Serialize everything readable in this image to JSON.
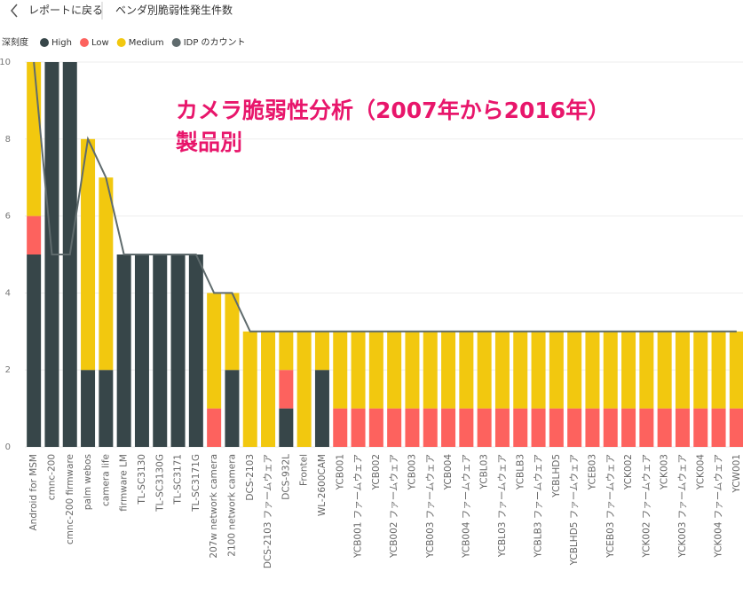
{
  "header": {
    "back": "レポートに戻る",
    "page_title": "ベンダ別脆弱性発生件数"
  },
  "chart_data": {
    "type": "stacked_bar_line",
    "legend_title": "深刻度",
    "annotation": [
      "カメラ脆弱性分析（2007年から2016年）",
      "製品別"
    ],
    "categories": [
      "Android for MSM",
      "cmnc-200",
      "cmnc-200 firmware",
      "palm webos",
      "camera life",
      "firmware LM",
      "TL-SC3130",
      "TL-SC3130G",
      "TL-SC3171",
      "TL-SC3171G",
      "207w network camera",
      "2100 network camera",
      "DCS-2103",
      "DCS-2103 ファームウェア",
      "DCS-932L",
      "Frontel",
      "WL-2600CAM",
      "YCB001",
      "YCB001 ファームウェア",
      "YCB002",
      "YCB002 ファームウェア",
      "YCB003",
      "YCB003 ファームウェア",
      "YCB004",
      "YCB004 ファームウェア",
      "YCBL03",
      "YCBL03 ファームウェア",
      "YCBLB3",
      "YCBLB3 ファームウェア",
      "YCBLHD5",
      "YCBLHD5 ファームウェア",
      "YCEB03",
      "YCEB03 ファームウェア",
      "YCK002",
      "YCK002 ファームウェア",
      "YCK003",
      "YCK003 ファームウェア",
      "YCK004",
      "YCK004 ファームウェア",
      "YCW001"
    ],
    "series": [
      {
        "name": "High",
        "color": "#374649",
        "values": [
          5,
          10,
          10,
          2,
          2,
          5,
          5,
          5,
          5,
          5,
          null,
          2,
          null,
          null,
          1,
          null,
          2,
          null,
          null,
          null,
          null,
          null,
          null,
          null,
          null,
          null,
          null,
          null,
          null,
          null,
          null,
          null,
          null,
          null,
          null,
          null,
          null,
          null,
          null,
          null
        ]
      },
      {
        "name": "Low",
        "color": "#fd625e",
        "values": [
          1,
          null,
          null,
          null,
          null,
          null,
          null,
          null,
          null,
          null,
          1,
          null,
          null,
          null,
          1,
          null,
          null,
          1,
          1,
          1,
          1,
          1,
          1,
          1,
          1,
          1,
          1,
          1,
          1,
          1,
          1,
          1,
          1,
          1,
          1,
          1,
          1,
          1,
          1,
          1
        ]
      },
      {
        "name": "Medium",
        "color": "#f2c80f",
        "values": [
          4,
          null,
          null,
          6,
          5,
          null,
          null,
          null,
          null,
          null,
          3,
          2,
          3,
          3,
          1,
          3,
          1,
          2,
          2,
          2,
          2,
          2,
          2,
          2,
          2,
          2,
          2,
          2,
          2,
          2,
          2,
          2,
          2,
          2,
          2,
          2,
          2,
          2,
          2,
          2
        ]
      },
      {
        "name": "IDP のカウント",
        "color": "#5f6b6d",
        "type": "line",
        "values": [
          10,
          5,
          5,
          8,
          7,
          5,
          5,
          5,
          5,
          5,
          4,
          4,
          3,
          3,
          3,
          3,
          3,
          3,
          3,
          3,
          3,
          3,
          3,
          3,
          3,
          3,
          3,
          3,
          3,
          3,
          3,
          3,
          3,
          3,
          3,
          3,
          3,
          3,
          3,
          3
        ]
      }
    ],
    "ylim": [
      0,
      10
    ],
    "yticks": [
      0,
      2,
      4,
      6,
      8,
      10
    ],
    "grid": true
  }
}
